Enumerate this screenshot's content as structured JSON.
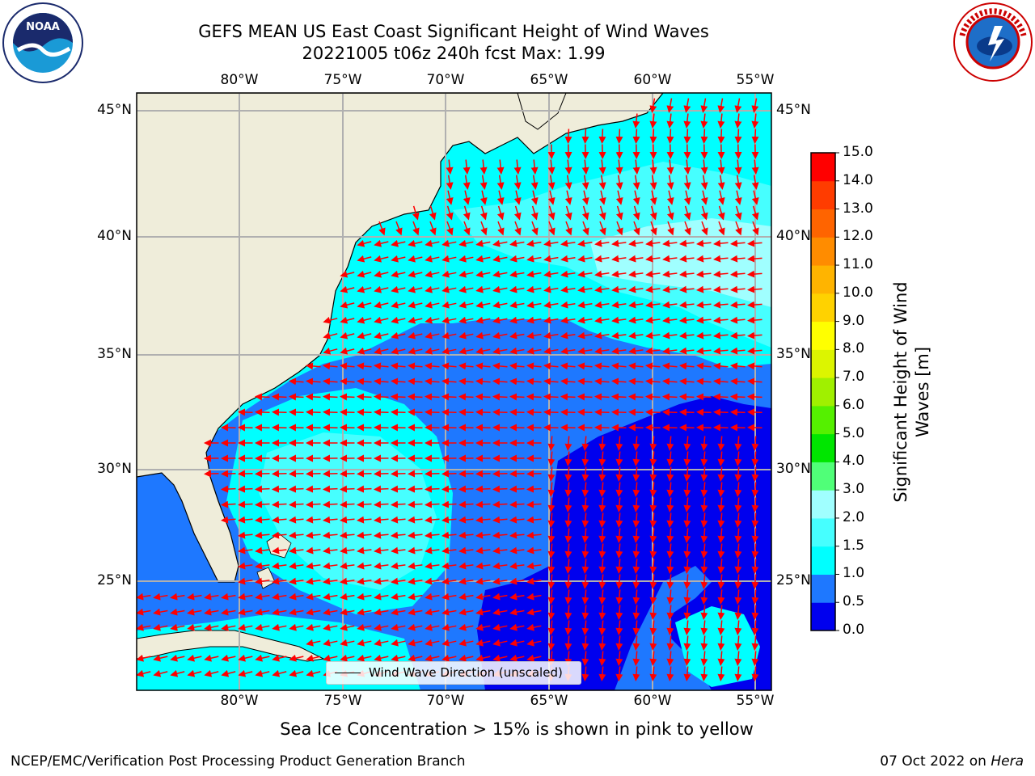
{
  "title_line1": "GEFS MEAN US East Coast Significant Height of Wind Waves",
  "title_line2": "20221005 t06z 240h fcst   Max: 1.99",
  "footnote": "Sea Ice Concentration > 15% is shown in pink to yellow",
  "credit_left": "NCEP/EMC/Verification Post Processing Product Generation Branch",
  "credit_date": "07 Oct 2022 on ",
  "credit_machine": "Hera",
  "lon_ticks": [
    "80°W",
    "75°W",
    "70°W",
    "65°W",
    "60°W",
    "55°W"
  ],
  "lat_ticks": [
    "45°N",
    "40°N",
    "35°N",
    "30°N",
    "25°N"
  ],
  "legend_label": "Wind Wave Direction (unscaled)",
  "colorbar": {
    "label_line1": "Significant Height of Wind",
    "label_line2": "Waves [m]",
    "ticks": [
      "0.0",
      "0.5",
      "1.0",
      "1.5",
      "2.0",
      "3.0",
      "4.0",
      "5.0",
      "6.0",
      "7.0",
      "8.0",
      "9.0",
      "10.0",
      "11.0",
      "12.0",
      "13.0",
      "14.0",
      "15.0"
    ],
    "colors": [
      "#0000ee",
      "#1e78ff",
      "#00ffff",
      "#46ffff",
      "#a0ffff",
      "#50ff78",
      "#00e600",
      "#55f000",
      "#a0f000",
      "#dcf500",
      "#ffff00",
      "#ffd200",
      "#ffb400",
      "#ff8c00",
      "#ff6400",
      "#ff3c00",
      "#ff0000"
    ]
  },
  "logos": {
    "left": "NOAA",
    "right": "NATIONAL WEATHER SERVICE"
  },
  "colors": {
    "land": "#efedda",
    "grid": "#b0b0b0",
    "arrow": "#ff0000",
    "coast": "#000000"
  }
}
